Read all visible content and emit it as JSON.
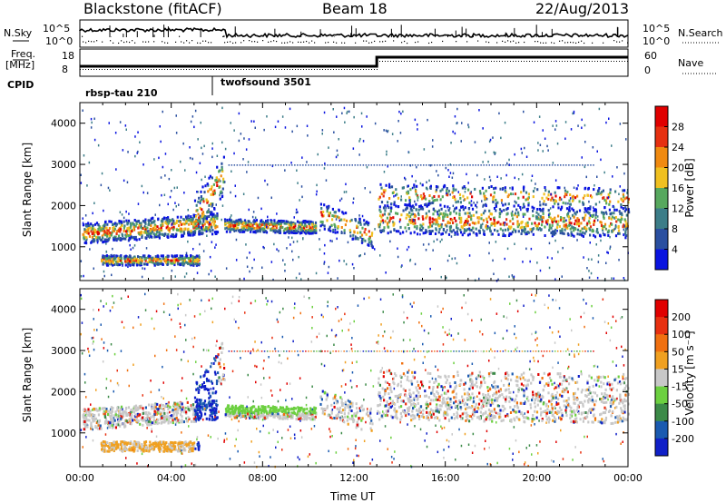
{
  "header": {
    "site": "Blackstone (fitACF)",
    "beam": "Beam 18",
    "date": "22/Aug/2013"
  },
  "left_labels": {
    "nsky": "N.Sky",
    "nsky_ticks": [
      "10^5",
      "10^0"
    ],
    "freq_line1": "Freq.",
    "freq_line2": "[MHz]",
    "freq_ticks": [
      "18",
      "8"
    ],
    "cpid": "CPID"
  },
  "right_labels": {
    "nsky_ticks": [
      "10^5",
      "10^0"
    ],
    "nsearch": "N.Search",
    "nave_ticks": [
      "60",
      "0"
    ],
    "nave": "Nave"
  },
  "cpid_segments": [
    {
      "label": "rbsp-tau 210",
      "start_hour": 0.0
    },
    {
      "label": "twofsound 3501",
      "start_hour": 6.0
    }
  ],
  "chart_data": [
    {
      "type": "heatmap",
      "name": "power",
      "xlabel": "",
      "ylabel": "Slant Range [km]",
      "xlim": [
        0,
        24
      ],
      "ylim": [
        180,
        4500
      ],
      "yticks": [
        "1000",
        "2000",
        "3000",
        "4000"
      ],
      "colorbar_label": "Power [dB]",
      "colorbar_ticks": [
        "4",
        "8",
        "12",
        "16",
        "20",
        "24",
        "28"
      ],
      "colorbar_colors": [
        "#0a14e0",
        "#2a4fa0",
        "#3c7d88",
        "#57a85e",
        "#f0c020",
        "#f08a10",
        "#e63010",
        "#e00000"
      ]
    },
    {
      "type": "heatmap",
      "name": "velocity",
      "xlabel": "Time UT",
      "ylabel": "Slant Range [km]",
      "xlim": [
        0,
        24
      ],
      "ylim": [
        180,
        4500
      ],
      "xticks": [
        "00:00",
        "04:00",
        "08:00",
        "12:00",
        "16:00",
        "20:00",
        "00:00"
      ],
      "yticks": [
        "1000",
        "2000",
        "3000",
        "4000"
      ],
      "colorbar_label": "Velocity [m s⁻¹]",
      "colorbar_ticks": [
        "200",
        "100",
        "50",
        "15",
        "-15",
        "-50",
        "-100",
        "-200"
      ],
      "colorbar_colors": [
        "#1020c8",
        "#1a5ab0",
        "#3c8a48",
        "#6cd040",
        "#c8c8c8",
        "#f0a020",
        "#f07010",
        "#e83010",
        "#e00000"
      ]
    }
  ]
}
